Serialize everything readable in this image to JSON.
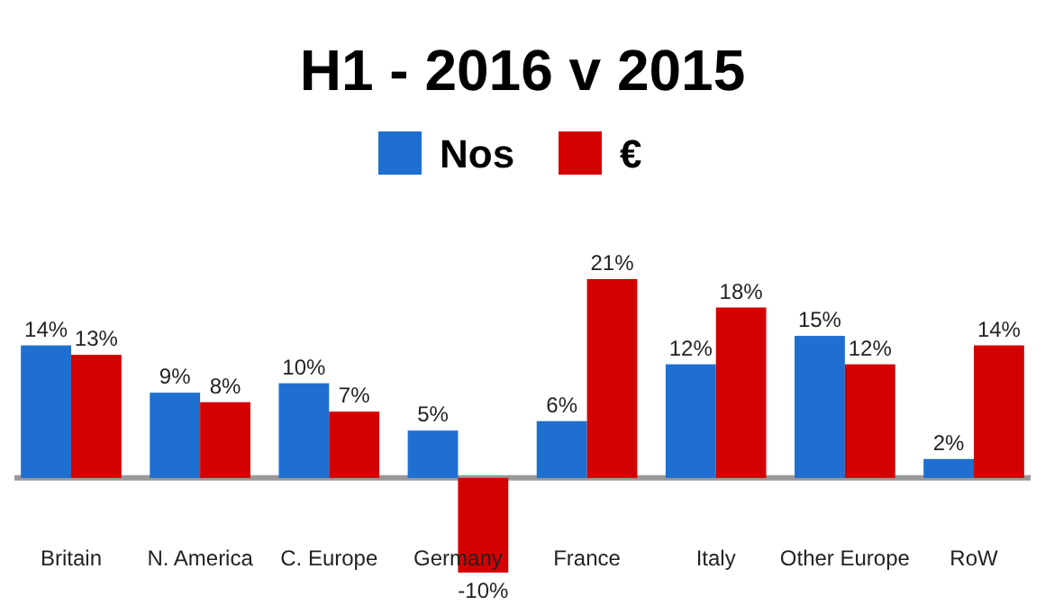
{
  "chart_data": {
    "type": "bar",
    "title": "H1 - 2016 v 2015",
    "categories": [
      "Britain",
      "N. America",
      "C. Europe",
      "Germany",
      "France",
      "Italy",
      "Other Europe",
      "RoW"
    ],
    "series": [
      {
        "name": "Nos",
        "color": "#1f6fd1",
        "values": [
          14,
          9,
          10,
          5,
          6,
          12,
          15,
          2
        ],
        "value_labels": [
          "14%",
          "9%",
          "10%",
          "5%",
          "6%",
          "12%",
          "15%",
          "2%"
        ]
      },
      {
        "name": "€",
        "color": "#d40000",
        "values": [
          13,
          8,
          7,
          -10,
          21,
          18,
          12,
          14
        ],
        "value_labels": [
          "13%",
          "8%",
          "7%",
          "-10%",
          "21%",
          "18%",
          "12%",
          "14%"
        ]
      }
    ],
    "legend": "top",
    "grid": false
  }
}
